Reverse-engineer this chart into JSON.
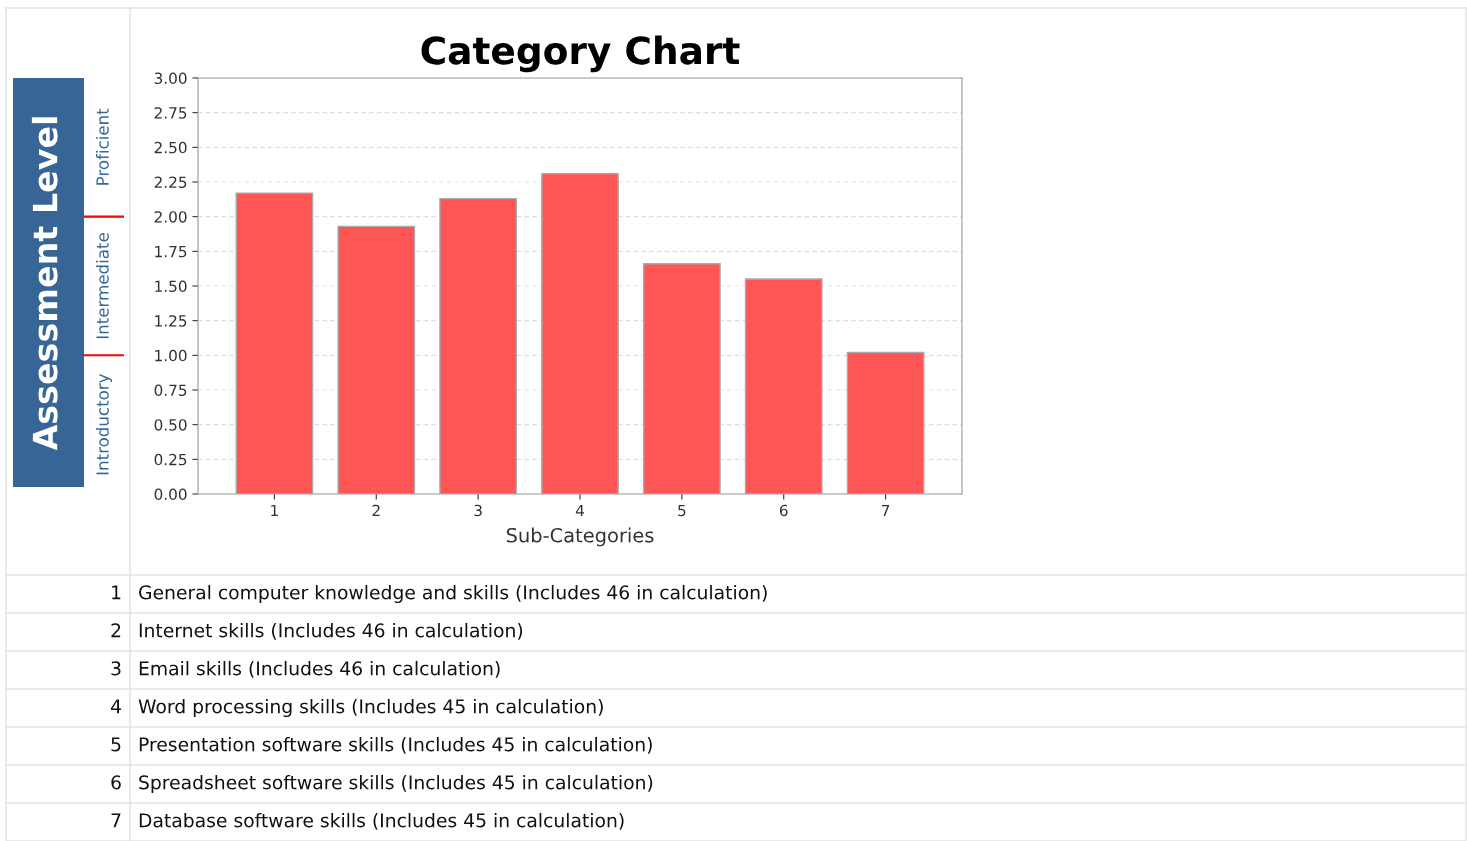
{
  "chart_data": {
    "type": "bar",
    "title": "Category Chart",
    "xlabel": "Sub-Categories",
    "ylabel": "Assessment Level",
    "categories": [
      "1",
      "2",
      "3",
      "4",
      "5",
      "6",
      "7"
    ],
    "values": [
      2.17,
      1.93,
      2.13,
      2.31,
      1.66,
      1.55,
      1.02
    ],
    "color": "#ff5555",
    "ylim": [
      0,
      3
    ],
    "yticks": [
      {
        "value": 0,
        "label": "0.00"
      },
      {
        "value": 0.25,
        "label": "0.25"
      },
      {
        "value": 0.5,
        "label": "0.50"
      },
      {
        "value": 0.75,
        "label": "0.75"
      },
      {
        "value": 1,
        "label": "1.00"
      },
      {
        "value": 1.25,
        "label": "1.25"
      },
      {
        "value": 1.5,
        "label": "1.50"
      },
      {
        "value": 1.75,
        "label": "1.75"
      },
      {
        "value": 2,
        "label": "2.00"
      },
      {
        "value": 2.25,
        "label": "2.25"
      },
      {
        "value": 2.5,
        "label": "2.50"
      },
      {
        "value": 2.75,
        "label": "2.75"
      },
      {
        "value": 3,
        "label": "3.00"
      }
    ],
    "grid": "y",
    "annotations": [
      "Introductory",
      "Intermediate",
      "Proficient",
      "General computer knowledge and skills (Includes 46 in calculation)",
      "Internet skills (Includes 46 in calculation)",
      "Email skills (Includes 46 in calculation)",
      "Word processing skills (Includes 45 in calculation)",
      "Presentation software skills (Includes 45 in calculation)",
      "Spreadsheet software skills (Includes 45 in calculation)",
      "Database software skills (Includes 45 in calculation)"
    ]
  }
}
